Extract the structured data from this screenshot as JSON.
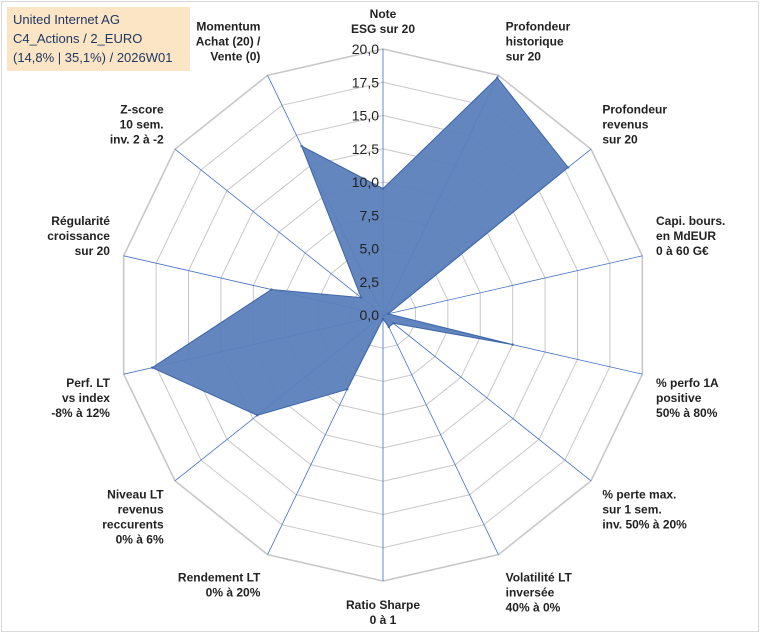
{
  "title_box": {
    "line1": "United Internet AG",
    "line2": "C4_Actions / 2_EURO",
    "line3": "(14,8% | 35,1%) / 2026W01"
  },
  "colors": {
    "fill": "#5b7fba",
    "stroke": "#3d65a8",
    "grid": "#c8c8c8",
    "spoke": "#4472c4",
    "title_bg": "#fbe5c4",
    "title_text": "#1f3864"
  },
  "chart_data": {
    "type": "radar",
    "scale": {
      "min": 0,
      "max": 20,
      "step": 2.5
    },
    "tick_labels": [
      "0,0",
      "2,5",
      "5,0",
      "7,5",
      "10,0",
      "12,5",
      "15,0",
      "17,5",
      "20,0"
    ],
    "axes": [
      {
        "label": [
          "Note",
          "ESG sur 20"
        ],
        "value": 9.5
      },
      {
        "label": [
          "Profondeur",
          "historique",
          "sur 20"
        ],
        "value": 19.8
      },
      {
        "label": [
          "Profondeur",
          "revenus",
          "sur 20"
        ],
        "value": 17.8
      },
      {
        "label": [
          "Capi. bours.",
          "en MdEUR",
          "0 à 60 G€"
        ],
        "value": 0.4
      },
      {
        "label": [
          "% perfo 1A",
          "positive",
          "50% à 80%"
        ],
        "value": 10.0
      },
      {
        "label": [
          "% perte max.",
          "sur 1 sem.",
          "inv. 50% à 20%"
        ],
        "value": 1.0
      },
      {
        "label": [
          "Volatilité LT",
          "inversée",
          "40% à 0%"
        ],
        "value": 1.0
      },
      {
        "label": [
          "Ratio Sharpe",
          "0 à 1"
        ],
        "value": 0.3
      },
      {
        "label": [
          "Rendement LT",
          "0% à 20%"
        ],
        "value": 6.2
      },
      {
        "label": [
          "Niveau LT",
          "revenus",
          "reccurents",
          "0% à 6%"
        ],
        "value": 12.1
      },
      {
        "label": [
          "Perf. LT",
          "vs index",
          "-8% à 12%"
        ],
        "value": 17.8
      },
      {
        "label": [
          "Régularité",
          "croissance",
          "sur 20"
        ],
        "value": 8.6
      },
      {
        "label": [
          "Z-score",
          "10 sem.",
          "inv. 2 à -2"
        ],
        "value": 2.1
      },
      {
        "label": [
          "Momentum",
          "Achat (20) /",
          "Vente (0)"
        ],
        "value": 14.1
      }
    ]
  }
}
